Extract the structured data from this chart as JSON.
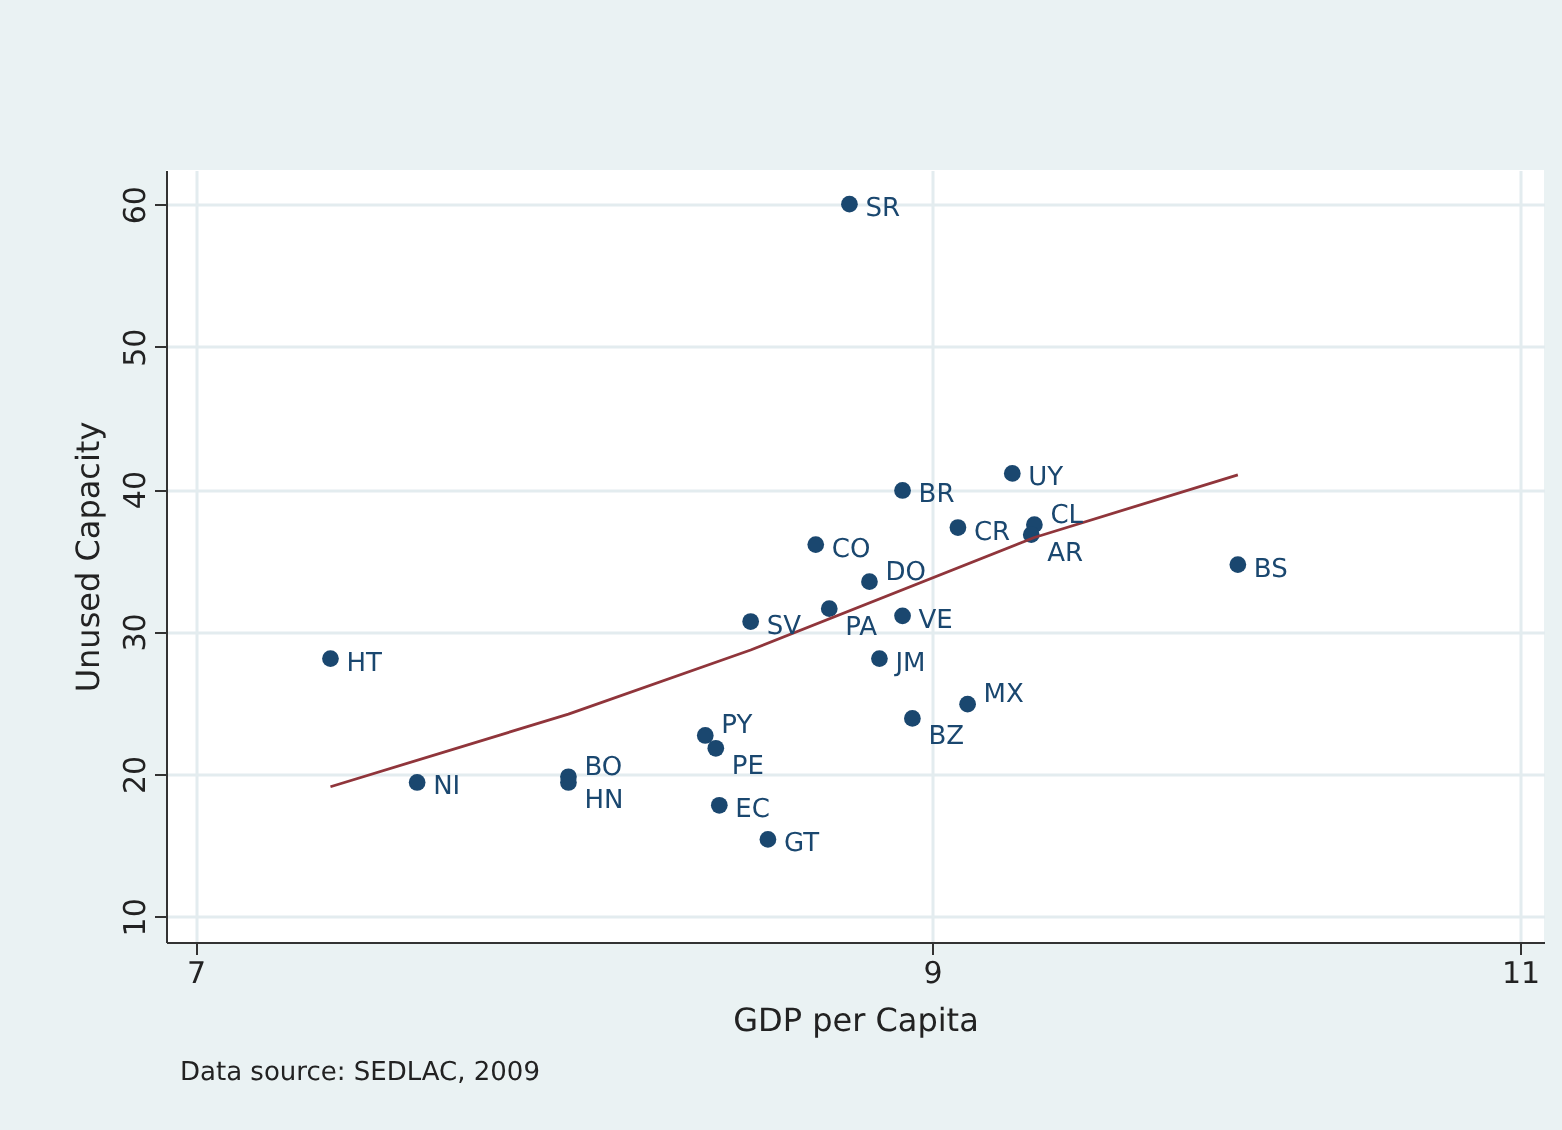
{
  "chart_data": {
    "type": "scatter",
    "xlabel": "GDP per Capita",
    "ylabel": "Unused Capacity",
    "log": "x",
    "grid": true,
    "xlim": [
      6.93,
      11.09
    ],
    "ylim": [
      8.2,
      62.4
    ],
    "xticks": [
      7,
      9,
      11
    ],
    "yticks": [
      10,
      20,
      30,
      40,
      50,
      60
    ],
    "series": [
      {
        "marker": "circle",
        "color": "#1a476f",
        "x": [
          8.75,
          7.33,
          7.55,
          7.95,
          7.95,
          8.33,
          8.36,
          8.37,
          8.51,
          8.46,
          8.69,
          8.65,
          8.81,
          8.91,
          8.84,
          8.91,
          8.94,
          9.11,
          9.08,
          9.25,
          9.32,
          9.31,
          9.99
        ],
        "values": [
          60,
          28.1,
          19.4,
          19.8,
          19.4,
          22.7,
          21.8,
          17.8,
          15.4,
          30.7,
          31.6,
          36.1,
          33.5,
          31.1,
          28.1,
          39.9,
          23.9,
          24.9,
          37.3,
          41.1,
          37.5,
          36.8,
          34.7
        ]
      },
      {
        "type": "line",
        "color": "#90353b",
        "x": [
          7.33,
          7.95,
          8.46,
          9.32,
          9.99
        ],
        "values": [
          19.1,
          24.2,
          28.7,
          36.6,
          41.0
        ]
      }
    ],
    "annotations": [
      {
        "text": "SR",
        "x": 8.75,
        "y": 60
      },
      {
        "text": "HT",
        "x": 7.33,
        "y": 28.1
      },
      {
        "text": "NI",
        "x": 7.55,
        "y": 19.4
      },
      {
        "text": "BO",
        "x": 7.95,
        "y": 19.8
      },
      {
        "text": "HN",
        "x": 7.95,
        "y": 19.4
      },
      {
        "text": "PY",
        "x": 8.33,
        "y": 22.7
      },
      {
        "text": "PE",
        "x": 8.36,
        "y": 21.8
      },
      {
        "text": "EC",
        "x": 8.37,
        "y": 17.8
      },
      {
        "text": "GT",
        "x": 8.51,
        "y": 15.4
      },
      {
        "text": "SV",
        "x": 8.46,
        "y": 30.7
      },
      {
        "text": "PA",
        "x": 8.69,
        "y": 31.6
      },
      {
        "text": "CO",
        "x": 8.65,
        "y": 36.1
      },
      {
        "text": "DO",
        "x": 8.81,
        "y": 33.5
      },
      {
        "text": "VE",
        "x": 8.91,
        "y": 31.1
      },
      {
        "text": "JM",
        "x": 8.84,
        "y": 28.1
      },
      {
        "text": "BR",
        "x": 8.91,
        "y": 39.9
      },
      {
        "text": "BZ",
        "x": 8.94,
        "y": 23.9
      },
      {
        "text": "MX",
        "x": 9.11,
        "y": 24.9
      },
      {
        "text": "CR",
        "x": 9.08,
        "y": 37.3
      },
      {
        "text": "UY",
        "x": 9.25,
        "y": 41.1
      },
      {
        "text": "CL",
        "x": 9.32,
        "y": 37.5
      },
      {
        "text": "AR",
        "x": 9.31,
        "y": 36.8
      },
      {
        "text": "BS",
        "x": 9.99,
        "y": 34.7
      },
      "Data source:  SEDLAC, 2009"
    ]
  }
}
